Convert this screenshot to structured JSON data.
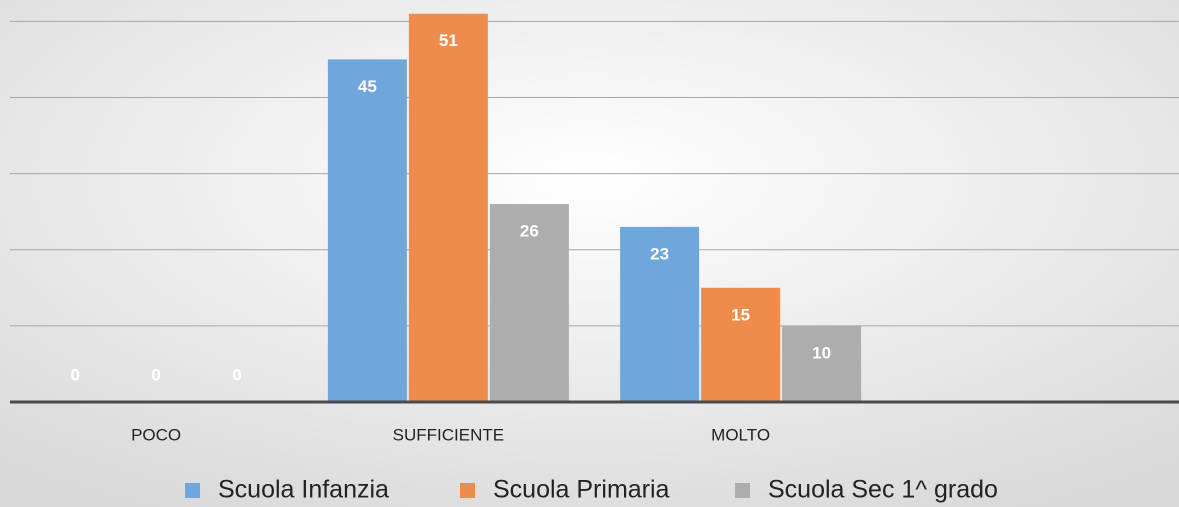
{
  "chart_data": {
    "type": "bar",
    "categories": [
      "POCO",
      "SUFFICIENTE",
      "MOLTO",
      null
    ],
    "series": [
      {
        "name": "Scuola Infanzia",
        "color": "#6fa6dc",
        "values": [
          0,
          45,
          23,
          null
        ]
      },
      {
        "name": "Scuola Primaria",
        "color": "#ef8c4c",
        "values": [
          0,
          51,
          15,
          null
        ]
      },
      {
        "name": "Scuola Sec 1^ grado",
        "color": "#adadad",
        "values": [
          0,
          26,
          10,
          null
        ]
      }
    ],
    "ylim": [
      0,
      52.8
    ],
    "yticks": [
      0,
      10,
      20,
      30,
      40,
      50
    ],
    "grid": true,
    "legend": "bottom"
  }
}
